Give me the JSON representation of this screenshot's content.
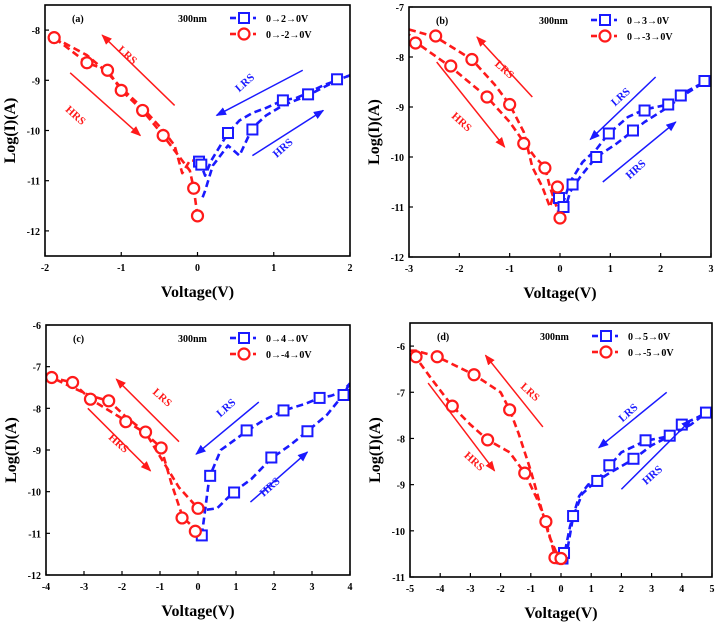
{
  "figure": {
    "colors": {
      "blue": "#1a1aff",
      "red": "#ff1a1a",
      "axis": "#000000"
    }
  },
  "chart_data": [
    {
      "type": "line",
      "panel_label": "(a)",
      "thickness_label": "300nm",
      "xlabel": "Voltage(V)",
      "ylabel": "Log(I)(A)",
      "xlim": [
        -2,
        2
      ],
      "ylim": [
        -12.5,
        -7.5
      ],
      "xticks": [
        -2,
        -1,
        0,
        1,
        2
      ],
      "yticks": [
        -12,
        -11,
        -10,
        -9,
        -8
      ],
      "grid": false,
      "legend_position": "top-right",
      "series": [
        {
          "name": "0→2→0V",
          "color": "blue",
          "marker": "square",
          "x": [
            0.02,
            0.05,
            0.1,
            0.18,
            0.3,
            0.4,
            0.55,
            0.72,
            0.9,
            1.12,
            1.3,
            1.45,
            1.65,
            1.83,
            2.0
          ],
          "y": [
            -10.6,
            -10.7,
            -10.9,
            -10.6,
            -10.3,
            -10.05,
            -9.8,
            -9.65,
            -9.55,
            -9.4,
            -9.35,
            -9.25,
            -9.1,
            -9.0,
            -8.9
          ],
          "return_x": [
            2.0,
            1.83,
            1.45,
            1.12,
            0.9,
            0.72,
            0.55,
            0.4,
            0.2,
            0.1,
            0.05
          ],
          "return_y": [
            -8.9,
            -9.0,
            -9.3,
            -9.5,
            -9.7,
            -9.95,
            -10.5,
            -10.3,
            -10.7,
            -11.2,
            -11.4
          ]
        },
        {
          "name": "0→-2→0V",
          "color": "red",
          "marker": "circle",
          "x": [
            0.0,
            -0.05,
            -0.1,
            -0.2,
            -0.3,
            -0.45,
            -0.72,
            -1.0,
            -1.18,
            -1.45,
            -1.88
          ],
          "y": [
            -11.7,
            -11.15,
            -10.8,
            -10.6,
            -10.4,
            -10.1,
            -9.6,
            -9.2,
            -8.8,
            -8.65,
            -8.15
          ],
          "return_x": [
            -1.88,
            -1.45,
            -1.18,
            -1.0,
            -0.72,
            -0.45,
            -0.3,
            -0.2,
            -0.1,
            0.0
          ],
          "return_y": [
            -8.15,
            -8.5,
            -8.85,
            -9.15,
            -9.55,
            -10.0,
            -10.3,
            -10.85,
            -10.6,
            -10.6
          ]
        }
      ],
      "markers": {
        "blue": {
          "x": [
            0.02,
            0.05,
            0.4,
            0.72,
            1.12,
            1.45,
            1.83
          ],
          "y": [
            -10.62,
            -10.68,
            -10.05,
            -9.98,
            -9.4,
            -9.28,
            -8.98
          ]
        },
        "red": {
          "x": [
            -1.88,
            -1.45,
            -1.18,
            -1.0,
            -0.72,
            -0.45,
            -0.05,
            0.0
          ],
          "y": [
            -8.15,
            -8.65,
            -8.8,
            -9.2,
            -9.6,
            -10.1,
            -11.15,
            -11.7
          ]
        }
      },
      "annotations": [
        {
          "text": "LRS",
          "color": "red",
          "x": -0.95,
          "y": -8.55,
          "angle": 42
        },
        {
          "text": "HRS",
          "color": "red",
          "x": -1.63,
          "y": -9.75,
          "angle": 42
        },
        {
          "text": "LRS",
          "color": "blue",
          "x": 0.65,
          "y": -9.1,
          "angle": -42
        },
        {
          "text": "HRS",
          "color": "blue",
          "x": 1.15,
          "y": -10.4,
          "angle": -42
        }
      ],
      "arrows": [
        {
          "color": "red",
          "from": [
            -0.3,
            -9.5
          ],
          "to": [
            -1.25,
            -8.1
          ]
        },
        {
          "color": "red",
          "from": [
            -1.67,
            -8.85
          ],
          "to": [
            -0.75,
            -10.1
          ]
        },
        {
          "color": "blue",
          "from": [
            1.38,
            -8.8
          ],
          "to": [
            0.25,
            -9.7
          ]
        },
        {
          "color": "blue",
          "from": [
            0.72,
            -10.5
          ],
          "to": [
            1.65,
            -9.6
          ]
        }
      ]
    },
    {
      "type": "line",
      "panel_label": "(b)",
      "thickness_label": "300nm",
      "xlabel": "Voltage(V)",
      "ylabel": "Log(I)(A)",
      "xlim": [
        -3,
        3
      ],
      "ylim": [
        -12,
        -7
      ],
      "xticks": [
        -3,
        -2,
        -1,
        0,
        1,
        2,
        3
      ],
      "yticks": [
        -12,
        -11,
        -10,
        -9,
        -8,
        -7
      ],
      "grid": false,
      "legend_position": "top-right",
      "series": [
        {
          "name": "0→3→0V",
          "color": "blue",
          "marker": "square",
          "x": [
            0.05,
            0.2,
            0.45,
            0.72,
            0.95,
            1.35,
            1.68,
            2.15,
            2.4,
            2.87,
            3.0
          ],
          "y": [
            -10.95,
            -10.5,
            -10.1,
            -9.85,
            -9.55,
            -9.2,
            -9.05,
            -8.95,
            -8.75,
            -8.5,
            -8.4
          ],
          "return_x": [
            3.0,
            2.87,
            2.4,
            2.15,
            1.68,
            1.45,
            1.1,
            0.72,
            0.4,
            0.2,
            0.1
          ],
          "return_y": [
            -8.4,
            -8.5,
            -8.8,
            -9.0,
            -9.3,
            -9.48,
            -9.75,
            -10.0,
            -10.4,
            -10.7,
            -11.05
          ]
        },
        {
          "name": "0→-3→0V",
          "color": "red",
          "marker": "circle",
          "x": [
            0.0,
            -0.1,
            -0.2,
            -0.3,
            -0.5,
            -0.72,
            -1.0,
            -1.45,
            -2.17,
            -2.87,
            -3.0
          ],
          "y": [
            -11.2,
            -10.9,
            -10.6,
            -10.2,
            -10.0,
            -9.7,
            -9.3,
            -8.8,
            -8.2,
            -7.7,
            -7.55
          ],
          "return_x": [
            -3.0,
            -2.47,
            -1.75,
            -1.3,
            -1.0,
            -0.72,
            -0.55,
            -0.35,
            -0.2,
            -0.08
          ],
          "return_y": [
            -7.45,
            -7.6,
            -8.05,
            -8.55,
            -8.95,
            -9.5,
            -10.2,
            -10.6,
            -11.0,
            -10.6
          ]
        }
      ],
      "markers": {
        "blue": {
          "x": [
            -0.02,
            0.07,
            0.25,
            0.72,
            0.97,
            1.45,
            1.68,
            2.15,
            2.4,
            2.87
          ],
          "y": [
            -10.82,
            -11.0,
            -10.55,
            -10.0,
            -9.53,
            -9.47,
            -9.07,
            -8.95,
            -8.77,
            -8.48
          ]
        },
        "red": {
          "x": [
            -2.87,
            -2.47,
            -2.17,
            -1.75,
            -1.45,
            -1.0,
            -0.72,
            -0.3,
            -0.05,
            0.0
          ],
          "y": [
            -7.72,
            -7.58,
            -8.18,
            -8.05,
            -8.8,
            -8.95,
            -9.73,
            -10.22,
            -10.6,
            -11.22
          ]
        }
      },
      "annotations": [
        {
          "text": "LRS",
          "color": "red",
          "x": -1.15,
          "y": -8.3,
          "angle": 42
        },
        {
          "text": "HRS",
          "color": "red",
          "x": -2.0,
          "y": -9.35,
          "angle": 42
        },
        {
          "text": "LRS",
          "color": "blue",
          "x": 1.25,
          "y": -8.85,
          "angle": -42
        },
        {
          "text": "HRS",
          "color": "blue",
          "x": 1.55,
          "y": -10.3,
          "angle": -42
        }
      ],
      "arrows": [
        {
          "color": "red",
          "from": [
            -0.55,
            -8.8
          ],
          "to": [
            -1.65,
            -7.6
          ]
        },
        {
          "color": "red",
          "from": [
            -2.45,
            -8.1
          ],
          "to": [
            -1.1,
            -9.8
          ]
        },
        {
          "color": "blue",
          "from": [
            1.9,
            -8.4
          ],
          "to": [
            0.6,
            -9.65
          ]
        },
        {
          "color": "blue",
          "from": [
            0.85,
            -10.5
          ],
          "to": [
            2.3,
            -9.3
          ]
        }
      ]
    },
    {
      "type": "line",
      "panel_label": "(c)",
      "thickness_label": "300nm",
      "xlabel": "Voltage(V)",
      "ylabel": "Log(I)(A)",
      "xlim": [
        -4,
        4
      ],
      "ylim": [
        -12,
        -6
      ],
      "xticks": [
        -4,
        -3,
        -2,
        -1,
        0,
        1,
        2,
        3,
        4
      ],
      "yticks": [
        -12,
        -11,
        -10,
        -9,
        -8,
        -7,
        -6
      ],
      "grid": false,
      "legend_position": "top-right",
      "series": [
        {
          "name": "0→4→0V",
          "color": "blue",
          "marker": "square",
          "x": [
            0.1,
            0.3,
            0.6,
            1.28,
            1.7,
            2.25,
            2.8,
            3.2,
            3.5,
            3.8,
            4.0
          ],
          "y": [
            -11.05,
            -9.65,
            -9.0,
            -8.55,
            -8.3,
            -8.05,
            -7.9,
            -7.75,
            -7.7,
            -7.6,
            -7.4
          ],
          "return_x": [
            4.0,
            3.8,
            3.4,
            2.88,
            2.4,
            1.93,
            1.4,
            0.95,
            0.5,
            0.1
          ],
          "return_y": [
            -7.4,
            -7.7,
            -8.15,
            -8.55,
            -8.9,
            -9.2,
            -9.7,
            -10.0,
            -10.4,
            -10.45
          ]
        },
        {
          "name": "0→-4→0V",
          "color": "red",
          "marker": "circle",
          "x": [
            0.0,
            -0.4,
            -0.7,
            -0.97,
            -1.38,
            -1.9,
            -2.83,
            -3.3,
            -3.85,
            -4.0
          ],
          "y": [
            -10.95,
            -10.62,
            -9.8,
            -8.95,
            -8.6,
            -8.3,
            -7.78,
            -7.38,
            -7.26,
            -7.2
          ],
          "return_x": [
            -4.0,
            -3.85,
            -3.3,
            -2.83,
            -2.35,
            -1.9,
            -1.38,
            -0.97,
            -0.5,
            0.0
          ],
          "return_y": [
            -7.2,
            -7.26,
            -7.5,
            -7.7,
            -7.82,
            -8.2,
            -8.58,
            -9.2,
            -9.9,
            -10.4
          ]
        }
      ],
      "markers": {
        "blue": {
          "x": [
            0.1,
            0.32,
            0.95,
            1.28,
            1.93,
            2.25,
            2.88,
            3.2,
            3.83
          ],
          "y": [
            -11.05,
            -9.62,
            -10.02,
            -8.53,
            -9.18,
            -8.05,
            -8.55,
            -7.75,
            -7.68
          ]
        },
        "red": {
          "x": [
            -3.85,
            -3.3,
            -2.83,
            -2.35,
            -1.9,
            -1.38,
            -0.97,
            -0.42,
            -0.07,
            0.0
          ],
          "y": [
            -7.26,
            -7.38,
            -7.78,
            -7.82,
            -8.32,
            -8.57,
            -8.95,
            -10.63,
            -10.95,
            -10.4
          ]
        }
      },
      "annotations": [
        {
          "text": "LRS",
          "color": "red",
          "x": -1.0,
          "y": -7.8,
          "angle": 42
        },
        {
          "text": "HRS",
          "color": "red",
          "x": -2.15,
          "y": -8.9,
          "angle": 42
        },
        {
          "text": "LRS",
          "color": "blue",
          "x": 0.8,
          "y": -8.05,
          "angle": -42
        },
        {
          "text": "HRS",
          "color": "blue",
          "x": 1.95,
          "y": -9.95,
          "angle": -42
        }
      ],
      "arrows": [
        {
          "color": "red",
          "from": [
            -0.5,
            -8.8
          ],
          "to": [
            -2.15,
            -7.3
          ]
        },
        {
          "color": "red",
          "from": [
            -2.9,
            -8.0
          ],
          "to": [
            -1.25,
            -9.5
          ]
        },
        {
          "color": "blue",
          "from": [
            1.6,
            -7.85
          ],
          "to": [
            -0.05,
            -9.1
          ]
        },
        {
          "color": "blue",
          "from": [
            1.38,
            -10.25
          ],
          "to": [
            2.88,
            -9.05
          ]
        }
      ]
    },
    {
      "type": "line",
      "panel_label": "(d)",
      "thickness_label": "300nm",
      "xlabel": "Voltage(V)",
      "ylabel": "Log(I)(A)",
      "xlim": [
        -5,
        5
      ],
      "ylim": [
        -11,
        -5.5
      ],
      "xticks": [
        -5,
        -4,
        -3,
        -2,
        -1,
        0,
        1,
        2,
        3,
        4,
        5
      ],
      "yticks": [
        -11,
        -10,
        -9,
        -8,
        -7,
        -6
      ],
      "grid": false,
      "legend_position": "top-right",
      "series": [
        {
          "name": "0→5→0V",
          "color": "blue",
          "marker": "square",
          "x": [
            0.1,
            0.2,
            0.4,
            0.7,
            1.2,
            1.6,
            2.0,
            2.8,
            3.2,
            3.6,
            4.0,
            4.5,
            4.8,
            5.0
          ],
          "y": [
            -10.6,
            -10.45,
            -9.7,
            -9.2,
            -8.9,
            -8.6,
            -8.3,
            -8.05,
            -8.0,
            -7.95,
            -7.7,
            -7.55,
            -7.45,
            -7.4
          ],
          "return_x": [
            5.0,
            4.8,
            4.3,
            3.6,
            3.0,
            2.4,
            1.6,
            1.2,
            0.9,
            0.6,
            0.3,
            0.1
          ],
          "return_y": [
            -7.4,
            -7.45,
            -7.7,
            -7.95,
            -8.15,
            -8.45,
            -8.75,
            -8.92,
            -9.0,
            -9.25,
            -9.9,
            -10.55
          ]
        },
        {
          "name": "0→-5→0V",
          "color": "red",
          "marker": "circle",
          "x": [
            0.0,
            -0.2,
            -0.5,
            -0.8,
            -1.2,
            -1.7,
            -2.43,
            -3.0,
            -3.6,
            -4.3,
            -4.8,
            -5.0
          ],
          "y": [
            -10.6,
            -10.55,
            -9.8,
            -9.3,
            -8.75,
            -8.3,
            -8.03,
            -7.7,
            -7.3,
            -6.7,
            -6.25,
            -6.1
          ],
          "return_x": [
            -5.0,
            -4.8,
            -4.1,
            -2.88,
            -2.0,
            -1.7,
            -1.4,
            -1.0,
            -0.7,
            -0.4,
            -0.1
          ],
          "return_y": [
            -6.1,
            -6.1,
            -6.23,
            -6.62,
            -7.0,
            -7.38,
            -7.9,
            -8.7,
            -9.4,
            -10.1,
            -10.55
          ]
        }
      ],
      "markers": {
        "blue": {
          "x": [
            0.05,
            0.1,
            0.4,
            1.2,
            1.6,
            2.4,
            2.8,
            3.6,
            4.0,
            4.8
          ],
          "y": [
            -10.6,
            -10.48,
            -9.68,
            -8.92,
            -8.58,
            -8.44,
            -8.04,
            -7.94,
            -7.7,
            -7.44
          ]
        },
        "red": {
          "x": [
            -4.8,
            -4.1,
            -3.6,
            -2.88,
            -2.43,
            -1.7,
            -1.2,
            -0.5,
            -0.2,
            0.0
          ],
          "y": [
            -6.23,
            -6.23,
            -7.3,
            -6.62,
            -8.03,
            -7.38,
            -8.75,
            -9.8,
            -10.58,
            -10.6
          ]
        }
      },
      "annotations": [
        {
          "text": "LRS",
          "color": "red",
          "x": -1.1,
          "y": -7.05,
          "angle": 42
        },
        {
          "text": "HRS",
          "color": "red",
          "x": -2.95,
          "y": -8.55,
          "angle": 42
        },
        {
          "text": "LRS",
          "color": "blue",
          "x": 2.3,
          "y": -7.5,
          "angle": -42
        },
        {
          "text": "HRS",
          "color": "blue",
          "x": 3.1,
          "y": -8.85,
          "angle": -42
        }
      ],
      "arrows": [
        {
          "color": "red",
          "from": [
            -0.6,
            -7.75
          ],
          "to": [
            -2.5,
            -6.2
          ]
        },
        {
          "color": "red",
          "from": [
            -4.4,
            -6.8
          ],
          "to": [
            -2.2,
            -8.7
          ]
        },
        {
          "color": "blue",
          "from": [
            3.5,
            -7.0
          ],
          "to": [
            1.25,
            -8.2
          ]
        },
        {
          "color": "blue",
          "from": [
            2.0,
            -9.1
          ],
          "to": [
            4.3,
            -7.6
          ]
        }
      ]
    }
  ]
}
